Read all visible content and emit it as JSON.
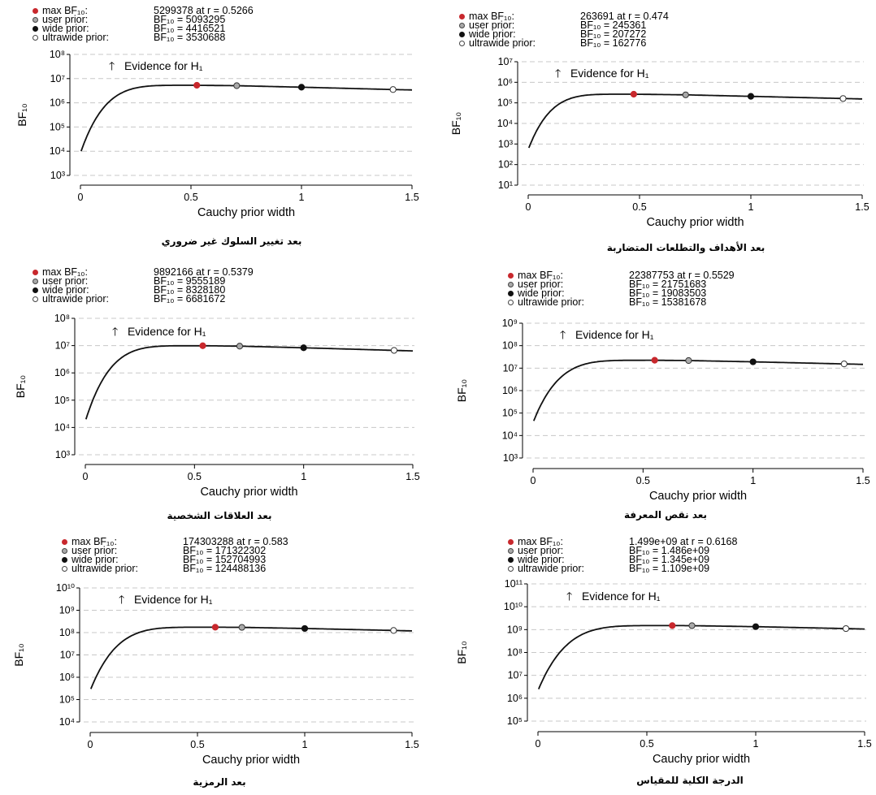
{
  "panels": [
    {
      "legend": [
        {
          "label": "max BF₁₀:",
          "value": "5299378 at r = 0.5266"
        },
        {
          "label": "user prior:",
          "value": "BF₁₀ = 5093295"
        },
        {
          "label": "wide prior:",
          "value": "BF₁₀ = 4416521"
        },
        {
          "label": "ultrawide prior:",
          "value": "BF₁₀ = 3530688"
        }
      ],
      "evidence_text": "Evidence for H₁",
      "caption": "بعد تغيير السلوك غير ضروري"
    },
    {
      "legend": [
        {
          "label": "max BF₁₀:",
          "value": "263691 at r = 0.474"
        },
        {
          "label": "user prior:",
          "value": "BF₁₀ = 245361"
        },
        {
          "label": "wide prior:",
          "value": "BF₁₀ = 207272"
        },
        {
          "label": "ultrawide prior:",
          "value": "BF₁₀ = 162776"
        }
      ],
      "evidence_text": "Evidence for H₁",
      "caption": "بعد الأهداف والتطلعات المتضاربة"
    },
    {
      "legend": [
        {
          "label": "max BF₁₀:",
          "value": "9892166 at r = 0.5379"
        },
        {
          "label": "user prior:",
          "value": "BF₁₀ = 9555189"
        },
        {
          "label": "wide prior:",
          "value": "BF₁₀ = 8328180"
        },
        {
          "label": "ultrawide prior:",
          "value": "BF₁₀ = 6681672"
        }
      ],
      "evidence_text": "Evidence for H₁",
      "caption": "بعد العلاقات الشخصية"
    },
    {
      "legend": [
        {
          "label": "max BF₁₀:",
          "value": "22387753 at r = 0.5529"
        },
        {
          "label": "user prior:",
          "value": "BF₁₀ = 21751683"
        },
        {
          "label": "wide prior:",
          "value": "BF₁₀ = 19083503"
        },
        {
          "label": "ultrawide prior:",
          "value": "BF₁₀ = 15381678"
        }
      ],
      "evidence_text": "Evidence for H₁",
      "caption": "بعد نقص المعرفة"
    },
    {
      "legend": [
        {
          "label": "max BF₁₀:",
          "value": "174303288 at r = 0.583"
        },
        {
          "label": "user prior:",
          "value": "BF₁₀ = 171322302"
        },
        {
          "label": "wide prior:",
          "value": "BF₁₀ = 152704993"
        },
        {
          "label": "ultrawide prior:",
          "value": "BF₁₀ = 124488136"
        }
      ],
      "evidence_text": "Evidence for H₁",
      "caption": "بعد الرمزية"
    },
    {
      "legend": [
        {
          "label": "max BF₁₀:",
          "value": "1.499e+09 at r = 0.6168"
        },
        {
          "label": "user prior:",
          "value": "BF₁₀ = 1.486e+09"
        },
        {
          "label": "wide prior:",
          "value": "BF₁₀ = 1.345e+09"
        },
        {
          "label": "ultrawide prior:",
          "value": "BF₁₀ = 1.109e+09"
        }
      ],
      "evidence_text": "Evidence for H₁",
      "caption": "الدرجة الكلية للمقياس"
    }
  ],
  "colors": {
    "max": "#c8282d",
    "user": "#a9a9a9",
    "wide": "#111111",
    "ultrawide": "#ffffff",
    "curve": "#111111",
    "grid": "#c8c8c8"
  },
  "chart_data": [
    {
      "type": "line",
      "xlabel": "Cauchy prior width",
      "ylabel": "BF₁₀",
      "y_scale": "log",
      "xlim": [
        0,
        1.5
      ],
      "xticks": [
        "0",
        "0.5",
        "1",
        "1.5"
      ],
      "yexp_range": [
        3,
        8
      ],
      "ytick_labels": [
        "10³",
        "10⁴",
        "10⁵",
        "10⁶",
        "10⁷",
        "10⁸"
      ],
      "series": [
        {
          "x": [
            0.003,
            0.5266,
            0.7071,
            1,
            1.4142,
            1.5
          ],
          "y": [
            10000,
            5299378,
            5093295,
            4416521,
            3530688,
            3400000
          ]
        }
      ],
      "points": [
        {
          "name": "max BF₁₀",
          "x": 0.5266,
          "y": 5299378
        },
        {
          "name": "user prior",
          "x": 0.7071,
          "y": 5093295
        },
        {
          "name": "wide prior",
          "x": 1,
          "y": 4416521
        },
        {
          "name": "ultrawide prior",
          "x": 1.4142,
          "y": 3530688
        }
      ]
    },
    {
      "type": "line",
      "xlabel": "Cauchy prior width",
      "ylabel": "BF₁₀",
      "y_scale": "log",
      "xlim": [
        0,
        1.5
      ],
      "xticks": [
        "0",
        "0.5",
        "1",
        "1.5"
      ],
      "yexp_range": [
        1,
        7
      ],
      "ytick_labels": [
        "10¹",
        "10²",
        "10³",
        "10⁴",
        "10⁵",
        "10⁶",
        "10⁷"
      ],
      "series": [
        {
          "x": [
            0.003,
            0.474,
            0.7071,
            1,
            1.4142,
            1.5
          ],
          "y": [
            650,
            263691,
            245361,
            207272,
            162776,
            155000
          ]
        }
      ],
      "points": [
        {
          "name": "max BF₁₀",
          "x": 0.474,
          "y": 263691
        },
        {
          "name": "user prior",
          "x": 0.7071,
          "y": 245361
        },
        {
          "name": "wide prior",
          "x": 1,
          "y": 207272
        },
        {
          "name": "ultrawide prior",
          "x": 1.4142,
          "y": 162776
        }
      ]
    },
    {
      "type": "line",
      "xlabel": "Cauchy prior width",
      "ylabel": "BF₁₀",
      "y_scale": "log",
      "xlim": [
        0,
        1.5
      ],
      "xticks": [
        "0",
        "0.5",
        "1",
        "1.5"
      ],
      "yexp_range": [
        3,
        8
      ],
      "ytick_labels": [
        "10³",
        "10⁴",
        "10⁵",
        "10⁶",
        "10⁷",
        "10⁸"
      ],
      "series": [
        {
          "x": [
            0.003,
            0.5379,
            0.7071,
            1,
            1.4142,
            1.5
          ],
          "y": [
            20000,
            9892166,
            9555189,
            8328180,
            6681672,
            6400000
          ]
        }
      ],
      "points": [
        {
          "name": "max BF₁₀",
          "x": 0.5379,
          "y": 9892166
        },
        {
          "name": "user prior",
          "x": 0.7071,
          "y": 9555189
        },
        {
          "name": "wide prior",
          "x": 1,
          "y": 8328180
        },
        {
          "name": "ultrawide prior",
          "x": 1.4142,
          "y": 6681672
        }
      ]
    },
    {
      "type": "line",
      "xlabel": "Cauchy prior width",
      "ylabel": "BF₁₀",
      "y_scale": "log",
      "xlim": [
        0,
        1.5
      ],
      "xticks": [
        "0",
        "0.5",
        "1",
        "1.5"
      ],
      "yexp_range": [
        3,
        9
      ],
      "ytick_labels": [
        "10³",
        "10⁴",
        "10⁵",
        "10⁶",
        "10⁷",
        "10⁸",
        "10⁹"
      ],
      "series": [
        {
          "x": [
            0.003,
            0.5529,
            0.7071,
            1,
            1.4142,
            1.5
          ],
          "y": [
            45000,
            22387753,
            21751683,
            19083503,
            15381678,
            14700000
          ]
        }
      ],
      "points": [
        {
          "name": "max BF₁₀",
          "x": 0.5529,
          "y": 22387753
        },
        {
          "name": "user prior",
          "x": 0.7071,
          "y": 21751683
        },
        {
          "name": "wide prior",
          "x": 1,
          "y": 19083503
        },
        {
          "name": "ultrawide prior",
          "x": 1.4142,
          "y": 15381678
        }
      ]
    },
    {
      "type": "line",
      "xlabel": "Cauchy prior width",
      "ylabel": "BF₁₀",
      "y_scale": "log",
      "xlim": [
        0,
        1.5
      ],
      "xticks": [
        "0",
        "0.5",
        "1",
        "1.5"
      ],
      "yexp_range": [
        4,
        10
      ],
      "ytick_labels": [
        "10⁴",
        "10⁵",
        "10⁶",
        "10⁷",
        "10⁸",
        "10⁹",
        "10¹⁰"
      ],
      "series": [
        {
          "x": [
            0.003,
            0.583,
            0.7071,
            1,
            1.4142,
            1.5
          ],
          "y": [
            300000,
            174303288,
            171322302,
            152704993,
            124488136,
            119000000
          ]
        }
      ],
      "points": [
        {
          "name": "max BF₁₀",
          "x": 0.583,
          "y": 174303288
        },
        {
          "name": "user prior",
          "x": 0.7071,
          "y": 171322302
        },
        {
          "name": "wide prior",
          "x": 1,
          "y": 152704993
        },
        {
          "name": "ultrawide prior",
          "x": 1.4142,
          "y": 124488136
        }
      ]
    },
    {
      "type": "line",
      "xlabel": "Cauchy prior width",
      "ylabel": "BF₁₀",
      "y_scale": "log",
      "xlim": [
        0,
        1.5
      ],
      "xticks": [
        "0",
        "0.5",
        "1",
        "1.5"
      ],
      "yexp_range": [
        5,
        11
      ],
      "ytick_labels": [
        "10⁵",
        "10⁶",
        "10⁷",
        "10⁸",
        "10⁹",
        "10¹⁰",
        "10¹¹"
      ],
      "series": [
        {
          "x": [
            0.003,
            0.6168,
            0.7071,
            1,
            1.4142,
            1.5
          ],
          "y": [
            2500000,
            1499000000,
            1486000000,
            1345000000,
            1109000000,
            1060000000
          ]
        }
      ],
      "points": [
        {
          "name": "max BF₁₀",
          "x": 0.6168,
          "y": 1499000000
        },
        {
          "name": "user prior",
          "x": 0.7071,
          "y": 1486000000
        },
        {
          "name": "wide prior",
          "x": 1,
          "y": 1345000000
        },
        {
          "name": "ultrawide prior",
          "x": 1.4142,
          "y": 1109000000
        }
      ]
    }
  ]
}
